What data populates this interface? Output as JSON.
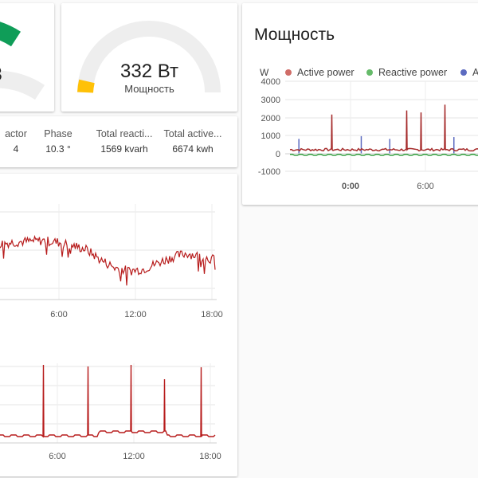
{
  "gauges": [
    {
      "value": "3",
      "color": "#0f9d58"
    },
    {
      "value": "332 Вт",
      "name": "Мощность",
      "color": "#ffc107"
    }
  ],
  "stats": [
    {
      "label": "actor",
      "value": "4"
    },
    {
      "label": "Phase",
      "value": "10.3 °"
    },
    {
      "label": "Total reacti...",
      "value": "1569 kvarh"
    },
    {
      "label": "Total active...",
      "value": "6674 kwh"
    }
  ],
  "power_card": {
    "title": "Мощность",
    "unit": "W",
    "legend": [
      {
        "name": "Active power",
        "color": "#d06d68"
      },
      {
        "name": "Reactive power",
        "color": "#66bb6a"
      },
      {
        "name": "A",
        "color": "#5c6bc0"
      }
    ]
  },
  "chart_data": [
    {
      "type": "line",
      "title": "",
      "ylabel": "W",
      "yticks": [
        "4000",
        "3000",
        "2000",
        "1000",
        "0",
        "-1000"
      ],
      "ylim": [
        -1000,
        4000
      ],
      "xticks": [
        "0:00",
        "6:00"
      ],
      "series": [
        {
          "name": "Active power",
          "color": "#a52a2a",
          "baseline": 200,
          "spikes": [
            [
              2.3,
              2150
            ],
            [
              6.5,
              2380
            ],
            [
              7.3,
              2270
            ],
            [
              8.7,
              2700
            ]
          ]
        },
        {
          "name": "Reactive power",
          "color": "#2e9d3a",
          "baseline": -80
        },
        {
          "name": "A",
          "color": "#5c6bc0",
          "spikes": [
            [
              0.5,
              800
            ],
            [
              4.0,
              950
            ],
            [
              5.6,
              800
            ],
            [
              9.2,
              900
            ]
          ]
        }
      ]
    },
    {
      "type": "line",
      "title": "",
      "xticks": [
        "6:00",
        "12:00",
        "18:00"
      ],
      "series": [
        {
          "color": "#b71c1c",
          "shape": "wave",
          "values": [
            0.62,
            0.64,
            0.65,
            0.66,
            0.64,
            0.6,
            0.55,
            0.42,
            0.32,
            0.28,
            0.3,
            0.38,
            0.45,
            0.5,
            0.46,
            0.42
          ]
        }
      ]
    },
    {
      "type": "line",
      "title": "",
      "xticks": [
        "6:00",
        "12:00",
        "18:00"
      ],
      "series": [
        {
          "color": "#b71c1c",
          "shape": "spikes",
          "baseline": 0.08,
          "spikes": [
            [
              4.4,
              0.98
            ],
            [
              6.8,
              0.96
            ],
            [
              9.0,
              0.96
            ],
            [
              10.5,
              0.58
            ],
            [
              13.4,
              0.98
            ],
            [
              13.9,
              0.92
            ],
            [
              15.7,
              0.98
            ],
            [
              16.8,
              0.8
            ],
            [
              19.0,
              0.74
            ],
            [
              20.5,
              0.95
            ]
          ]
        }
      ]
    }
  ]
}
